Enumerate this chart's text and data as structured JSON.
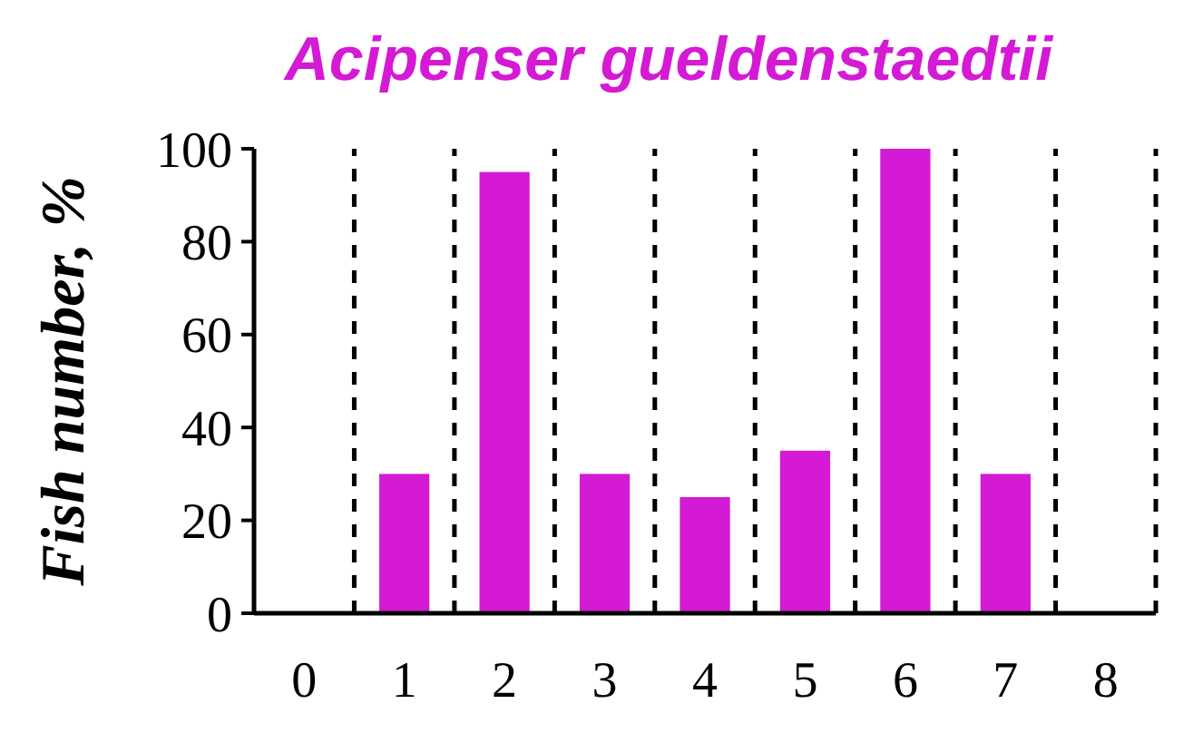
{
  "chart_data": {
    "type": "bar",
    "title": "Acipenser gueldenstaedtii",
    "ylabel": "Fish number, %",
    "x": [
      0,
      1,
      2,
      3,
      4,
      5,
      6,
      7,
      8
    ],
    "values": [
      0,
      30,
      95,
      30,
      25,
      35,
      100,
      30,
      0
    ],
    "color": "#d41ad4",
    "xlim": [
      -0.5,
      8.5
    ],
    "xticks": [
      0,
      1,
      2,
      3,
      4,
      5,
      6,
      7,
      8
    ],
    "ylim": [
      0,
      100
    ],
    "yticks": [
      0,
      20,
      40,
      60,
      80,
      100
    ],
    "ref_lines": [
      {
        "axis": "x",
        "value": 0.5,
        "line_style": "dashed"
      },
      {
        "axis": "x",
        "value": 1.5,
        "line_style": "dashed"
      },
      {
        "axis": "x",
        "value": 2.5,
        "line_style": "dashed"
      },
      {
        "axis": "x",
        "value": 3.5,
        "line_style": "dashed"
      },
      {
        "axis": "x",
        "value": 4.5,
        "line_style": "dashed"
      },
      {
        "axis": "x",
        "value": 5.5,
        "line_style": "dashed"
      },
      {
        "axis": "x",
        "value": 6.5,
        "line_style": "dashed"
      },
      {
        "axis": "x",
        "value": 7.5,
        "line_style": "dashed"
      },
      {
        "axis": "x",
        "value": 8.5,
        "line_style": "dashed"
      }
    ],
    "grid": false
  }
}
